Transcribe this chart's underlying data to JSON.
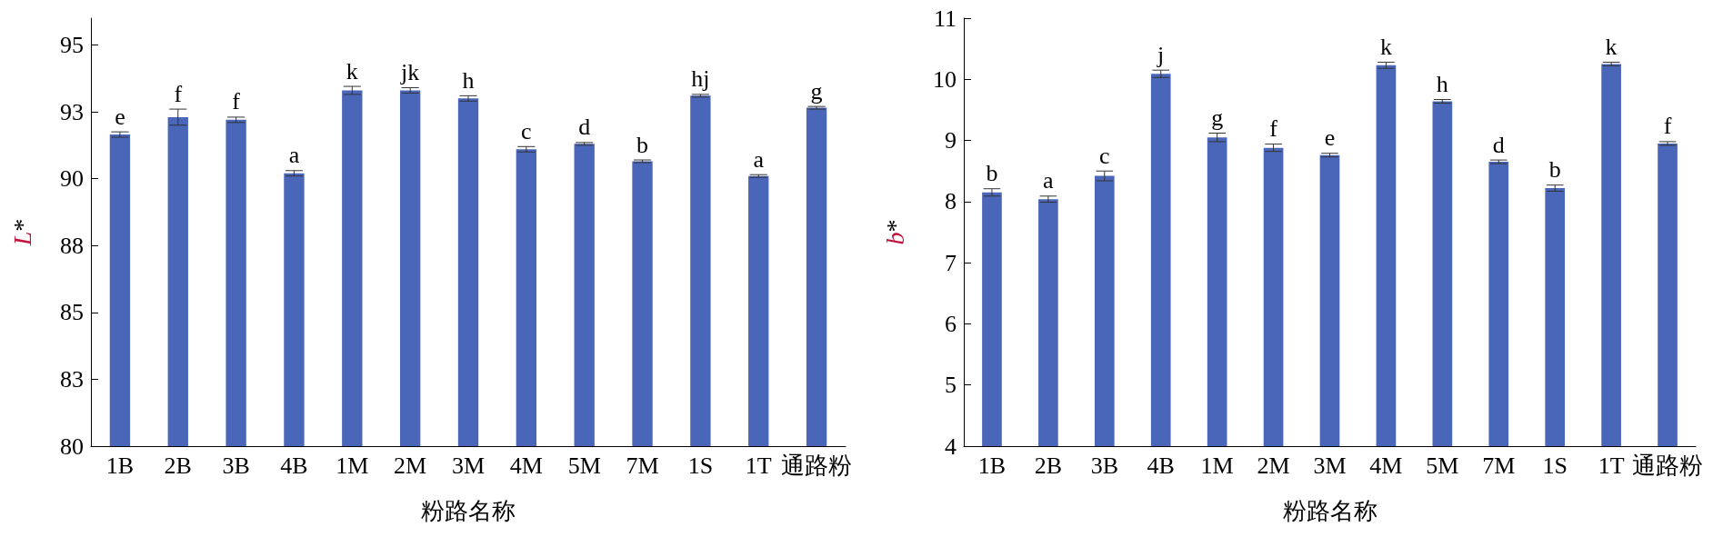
{
  "chart_data": [
    {
      "type": "bar",
      "xlabel": "粉路名称",
      "ylabel": "L*",
      "categories": [
        "1B",
        "2B",
        "3B",
        "4B",
        "1M",
        "2M",
        "3M",
        "4M",
        "5M",
        "7M",
        "1S",
        "1T",
        "通路粉"
      ],
      "values": [
        91.65,
        92.3,
        92.2,
        90.2,
        93.3,
        93.3,
        93.0,
        91.1,
        91.3,
        90.65,
        93.1,
        90.1,
        92.65
      ],
      "errors": [
        0.1,
        0.3,
        0.1,
        0.1,
        0.15,
        0.1,
        0.1,
        0.1,
        0.05,
        0.05,
        0.05,
        0.05,
        0.05
      ],
      "value_labels": [
        "e",
        "f",
        "f",
        "a",
        "k",
        "jk",
        "h",
        "c",
        "d",
        "b",
        "hj",
        "a",
        "g"
      ],
      "color": "#4a66b8",
      "ylim": [
        80,
        96
      ],
      "yticks": [
        80,
        {
          "value": 82.5,
          "label": "83"
        },
        85,
        {
          "value": 87.5,
          "label": "88"
        },
        90,
        {
          "value": 92.5,
          "label": "93"
        },
        95
      ],
      "grid": false
    },
    {
      "type": "bar",
      "xlabel": "粉路名称",
      "ylabel": "b*",
      "categories": [
        "1B",
        "2B",
        "3B",
        "4B",
        "1M",
        "2M",
        "3M",
        "4M",
        "5M",
        "7M",
        "1S",
        "1T",
        "通路粉"
      ],
      "values": [
        8.15,
        8.04,
        8.42,
        10.09,
        9.05,
        8.88,
        8.76,
        10.23,
        9.64,
        8.65,
        8.22,
        10.25,
        8.95
      ],
      "errors": [
        0.06,
        0.05,
        0.08,
        0.06,
        0.07,
        0.06,
        0.03,
        0.05,
        0.03,
        0.03,
        0.05,
        0.03,
        0.03
      ],
      "value_labels": [
        "b",
        "a",
        "c",
        "j",
        "g",
        "f",
        "e",
        "k",
        "h",
        "d",
        "b",
        "k",
        "f"
      ],
      "color": "#4a66b8",
      "ylim": [
        4,
        11
      ],
      "yticks": [
        4,
        5,
        6,
        7,
        8,
        9,
        10,
        11
      ],
      "grid": false
    }
  ]
}
